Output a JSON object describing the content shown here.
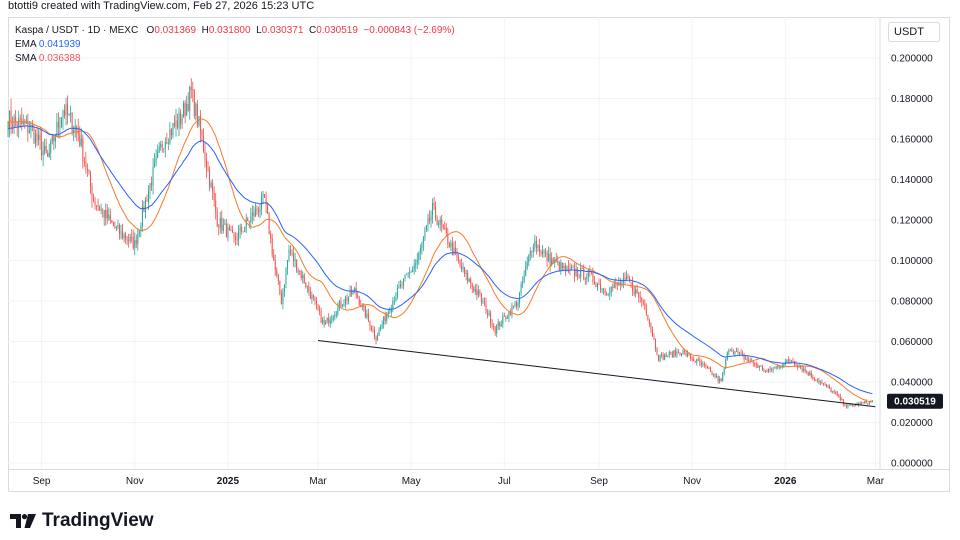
{
  "header": {
    "text": "btotti9 created with TradingView.com, Feb 27, 2026 15:23 UTC"
  },
  "legend": {
    "symbol": "Kaspa / USDT · 1D · MEXC",
    "o_label": "O",
    "o": "0.031369",
    "h_label": "H",
    "h": "0.031800",
    "l_label": "L",
    "l": "0.030371",
    "c_label": "C",
    "c": "0.030519",
    "change": "−0.000843 (−2.69%)",
    "ema_label": "EMA",
    "ema": "0.041939",
    "sma_label": "SMA",
    "sma": "0.036388"
  },
  "currency": "USDT",
  "last_price": "0.030519",
  "brand": {
    "name": "TradingView",
    "logo_icon": "tradingview-logo-icon"
  },
  "colors": {
    "up": "#26a69a",
    "down": "#ef5350",
    "ema": "#2962ff",
    "sma": "#f57c2a",
    "trendline": "#131722",
    "price_tag": "#131722"
  },
  "chart_data": {
    "type": "candlestick",
    "symbol": "Kaspa / USDT",
    "interval": "1D",
    "exchange": "MEXC",
    "ylim": [
      0.0,
      0.2
    ],
    "y_ticks": [
      "0.000000",
      "0.020000",
      "0.040000",
      "0.060000",
      "0.080000",
      "0.100000",
      "0.120000",
      "0.140000",
      "0.160000",
      "0.180000",
      "0.200000"
    ],
    "x_ticks": [
      "Sep",
      "Nov",
      "2025",
      "Mar",
      "May",
      "Jul",
      "Sep",
      "Nov",
      "2026",
      "Mar"
    ],
    "x_tick_values": [
      "2024-09-01",
      "2024-11-01",
      "2025-01-01",
      "2025-03-01",
      "2025-05-01",
      "2025-07-01",
      "2025-09-01",
      "2025-11-01",
      "2026-01-01",
      "2026-03-01"
    ],
    "x_start": "2024-08-10",
    "x_end": "2026-03-04",
    "close_anchors": [
      [
        "2024-08-10",
        0.17
      ],
      [
        "2024-08-25",
        0.165
      ],
      [
        "2024-09-05",
        0.15
      ],
      [
        "2024-09-15",
        0.175
      ],
      [
        "2024-09-25",
        0.163
      ],
      [
        "2024-10-05",
        0.13
      ],
      [
        "2024-10-20",
        0.115
      ],
      [
        "2024-11-01",
        0.108
      ],
      [
        "2024-11-10",
        0.135
      ],
      [
        "2024-11-20",
        0.16
      ],
      [
        "2024-12-01",
        0.17
      ],
      [
        "2024-12-08",
        0.183
      ],
      [
        "2024-12-15",
        0.16
      ],
      [
        "2024-12-25",
        0.12
      ],
      [
        "2025-01-05",
        0.11
      ],
      [
        "2025-01-15",
        0.12
      ],
      [
        "2025-01-25",
        0.13
      ],
      [
        "2025-02-01",
        0.095
      ],
      [
        "2025-02-05",
        0.08
      ],
      [
        "2025-02-10",
        0.105
      ],
      [
        "2025-02-20",
        0.09
      ],
      [
        "2025-03-05",
        0.068
      ],
      [
        "2025-03-15",
        0.078
      ],
      [
        "2025-03-25",
        0.085
      ],
      [
        "2025-04-08",
        0.062
      ],
      [
        "2025-04-20",
        0.082
      ],
      [
        "2025-05-05",
        0.1
      ],
      [
        "2025-05-15",
        0.125
      ],
      [
        "2025-05-25",
        0.11
      ],
      [
        "2025-06-05",
        0.093
      ],
      [
        "2025-06-15",
        0.082
      ],
      [
        "2025-06-25",
        0.066
      ],
      [
        "2025-07-10",
        0.08
      ],
      [
        "2025-07-20",
        0.11
      ],
      [
        "2025-07-28",
        0.102
      ],
      [
        "2025-08-10",
        0.095
      ],
      [
        "2025-08-25",
        0.093
      ],
      [
        "2025-09-05",
        0.085
      ],
      [
        "2025-09-20",
        0.09
      ],
      [
        "2025-10-01",
        0.078
      ],
      [
        "2025-10-10",
        0.052
      ],
      [
        "2025-10-25",
        0.055
      ],
      [
        "2025-11-10",
        0.047
      ],
      [
        "2025-11-20",
        0.04
      ],
      [
        "2025-11-25",
        0.057
      ],
      [
        "2025-12-05",
        0.052
      ],
      [
        "2025-12-20",
        0.045
      ],
      [
        "2026-01-05",
        0.051
      ],
      [
        "2026-01-20",
        0.042
      ],
      [
        "2026-02-03",
        0.034
      ],
      [
        "2026-02-10",
        0.028
      ],
      [
        "2026-02-27",
        0.0305
      ]
    ],
    "ema_last": 0.041939,
    "sma_last": 0.036388,
    "last_close": 0.030519,
    "trendline": [
      [
        "2025-03-01",
        0.0605
      ],
      [
        "2026-03-01",
        0.0278
      ]
    ]
  }
}
